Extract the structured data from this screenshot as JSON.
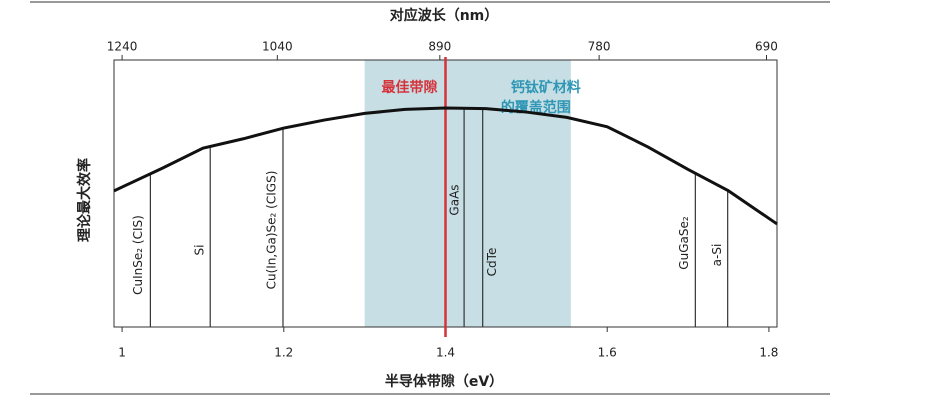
{
  "chart_data": {
    "type": "line",
    "title": "对应波长（nm）",
    "x_label": "半导体带隙（eV）",
    "y_label": "理论最大效率",
    "x": [
      0.99,
      1.05,
      1.1,
      1.15,
      1.2,
      1.25,
      1.3,
      1.35,
      1.4,
      1.45,
      1.5,
      1.55,
      1.6,
      1.65,
      1.7,
      1.75,
      1.81
    ],
    "values": [
      0.51,
      0.595,
      0.67,
      0.705,
      0.745,
      0.775,
      0.8,
      0.815,
      0.82,
      0.818,
      0.805,
      0.785,
      0.75,
      0.675,
      0.59,
      0.51,
      0.386
    ],
    "color": "#111111",
    "xlim": [
      0.99,
      1.81
    ],
    "ylim": [
      0,
      1
    ],
    "xticks": [
      {
        "value": 1,
        "label": "1"
      },
      1.2,
      1.4,
      1.6,
      1.8
    ],
    "x2ticks": [
      {
        "value": 1.0,
        "label": "1240"
      },
      {
        "value": 1.192,
        "label": "1040"
      },
      {
        "value": 1.393,
        "label": "890"
      },
      {
        "value": 1.59,
        "label": "780"
      },
      {
        "value": 1.797,
        "label": "690"
      }
    ],
    "materials": [
      {
        "label": "CuInSe₂ (CIS)",
        "value": 1.035
      },
      {
        "label": "Si",
        "value": 1.109
      },
      {
        "label": "Cu(In,Ga)Se₂ (CIGS)",
        "value": 1.199
      },
      {
        "label": "GaAs",
        "value": 1.423
      },
      {
        "label": "CdTe",
        "value": 1.446
      },
      {
        "label": "GuGaSe₂",
        "value": 1.709
      },
      {
        "label": "a-Si",
        "value": 1.749
      }
    ],
    "optimal": {
      "label": "最佳带隙",
      "value": 1.4,
      "color": "#d6323a"
    },
    "perovskite": {
      "label": [
        "钙钛矿材料",
        "的覆盖范围"
      ],
      "range": [
        1.3,
        1.555
      ],
      "color": "#c6dee4",
      "text_color": "#2f97b5"
    }
  }
}
